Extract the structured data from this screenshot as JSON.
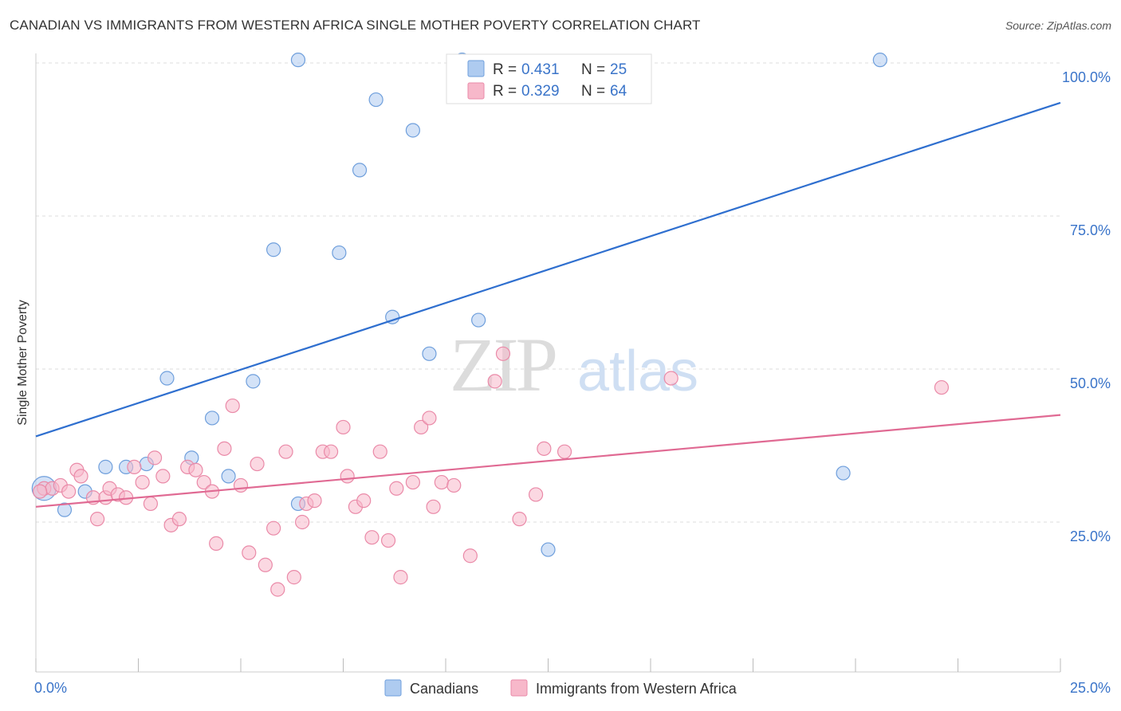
{
  "header": {
    "title": "CANADIAN VS IMMIGRANTS FROM WESTERN AFRICA SINGLE MOTHER POVERTY CORRELATION CHART",
    "source": "Source: ZipAtlas.com"
  },
  "watermark": {
    "zip": "ZIP",
    "atlas": "atlas"
  },
  "colors": {
    "blue_fill": "#aecbf0",
    "blue_stroke": "#6f9fdc",
    "blue_line": "#2f6fcf",
    "pink_fill": "#f7b8ca",
    "pink_stroke": "#ea8aa8",
    "pink_line": "#e06a93",
    "axis_label": "#3a74c9",
    "grid": "#dddddd"
  },
  "legend": {
    "rows": [
      {
        "r_label": "R =",
        "r_value": "0.431",
        "n_label": "N =",
        "n_value": "25"
      },
      {
        "r_label": "R =",
        "r_value": "0.329",
        "n_label": "N =",
        "n_value": "64"
      }
    ]
  },
  "chart_data": {
    "type": "scatter",
    "title": "CANADIAN VS IMMIGRANTS FROM WESTERN AFRICA SINGLE MOTHER POVERTY CORRELATION CHART",
    "xlabel": "",
    "ylabel": "Single Mother Poverty",
    "xlim": [
      0,
      25
    ],
    "ylim": [
      0,
      105
    ],
    "x_ticks": [
      0,
      2.5,
      5,
      7.5,
      10,
      12.5,
      15,
      17.5,
      20,
      22.5,
      25
    ],
    "x_tick_labels": {
      "0": "0.0%",
      "25": "25.0%"
    },
    "y_ticks": [
      25,
      50,
      75,
      100
    ],
    "y_tick_labels": [
      "25.0%",
      "50.0%",
      "75.0%",
      "100.0%"
    ],
    "grid": "horizontal dashed",
    "legend_position": "bottom-center",
    "series": [
      {
        "name": "Canadians",
        "color": "blue",
        "r": 0.431,
        "n": 25,
        "trend": {
          "x": [
            0,
            25
          ],
          "y": [
            39.0,
            93.5
          ]
        },
        "points": [
          [
            0.2,
            30.5
          ],
          [
            0.7,
            27.0
          ],
          [
            1.2,
            30.0
          ],
          [
            1.7,
            34.0
          ],
          [
            2.2,
            34.0
          ],
          [
            2.7,
            34.5
          ],
          [
            3.2,
            48.5
          ],
          [
            3.8,
            35.5
          ],
          [
            4.3,
            42.0
          ],
          [
            4.7,
            32.5
          ],
          [
            5.3,
            48.0
          ],
          [
            5.8,
            69.5
          ],
          [
            6.4,
            100.5
          ],
          [
            6.4,
            28.0
          ],
          [
            7.4,
            69.0
          ],
          [
            7.9,
            82.5
          ],
          [
            8.3,
            94.0
          ],
          [
            8.7,
            58.5
          ],
          [
            9.2,
            89.0
          ],
          [
            9.6,
            52.5
          ],
          [
            10.4,
            100.5
          ],
          [
            10.8,
            58.0
          ],
          [
            12.5,
            20.5
          ],
          [
            19.7,
            33.0
          ],
          [
            20.6,
            100.5
          ]
        ]
      },
      {
        "name": "Immigrants from Western Africa",
        "color": "pink",
        "r": 0.329,
        "n": 64,
        "trend": {
          "x": [
            0,
            25
          ],
          "y": [
            27.5,
            42.5
          ]
        },
        "points": [
          [
            0.2,
            30.5
          ],
          [
            0.4,
            30.5
          ],
          [
            0.6,
            31.0
          ],
          [
            0.8,
            30.0
          ],
          [
            1.0,
            33.5
          ],
          [
            1.1,
            32.5
          ],
          [
            1.4,
            29.0
          ],
          [
            1.5,
            25.5
          ],
          [
            1.7,
            29.0
          ],
          [
            1.8,
            30.5
          ],
          [
            2.0,
            29.5
          ],
          [
            2.2,
            29.0
          ],
          [
            2.4,
            34.0
          ],
          [
            2.6,
            31.5
          ],
          [
            2.8,
            28.0
          ],
          [
            2.9,
            35.5
          ],
          [
            3.1,
            32.5
          ],
          [
            3.3,
            24.5
          ],
          [
            3.5,
            25.5
          ],
          [
            3.7,
            34.0
          ],
          [
            3.9,
            33.5
          ],
          [
            4.1,
            31.5
          ],
          [
            4.3,
            30.0
          ],
          [
            4.4,
            21.5
          ],
          [
            4.6,
            37.0
          ],
          [
            4.8,
            44.0
          ],
          [
            5.0,
            31.0
          ],
          [
            5.2,
            20.0
          ],
          [
            5.4,
            34.5
          ],
          [
            5.6,
            18.0
          ],
          [
            5.8,
            24.0
          ],
          [
            5.9,
            14.0
          ],
          [
            6.1,
            36.5
          ],
          [
            6.3,
            16.0
          ],
          [
            6.5,
            25.0
          ],
          [
            6.6,
            28.0
          ],
          [
            6.8,
            28.5
          ],
          [
            7.0,
            36.5
          ],
          [
            7.2,
            36.5
          ],
          [
            7.5,
            40.5
          ],
          [
            7.6,
            32.5
          ],
          [
            7.8,
            27.5
          ],
          [
            8.0,
            28.5
          ],
          [
            8.2,
            22.5
          ],
          [
            8.4,
            36.5
          ],
          [
            8.6,
            22.0
          ],
          [
            8.8,
            30.5
          ],
          [
            8.9,
            16.0
          ],
          [
            9.2,
            31.5
          ],
          [
            9.4,
            40.5
          ],
          [
            9.6,
            42.0
          ],
          [
            9.7,
            27.5
          ],
          [
            9.9,
            31.5
          ],
          [
            10.2,
            31.0
          ],
          [
            10.6,
            19.5
          ],
          [
            11.2,
            48.0
          ],
          [
            11.4,
            52.5
          ],
          [
            11.8,
            25.5
          ],
          [
            12.2,
            29.5
          ],
          [
            12.4,
            37.0
          ],
          [
            12.9,
            36.5
          ],
          [
            15.5,
            48.5
          ],
          [
            22.1,
            47.0
          ],
          [
            0.1,
            30.0
          ]
        ]
      }
    ]
  },
  "bottom_legend": {
    "items": [
      {
        "label": "Canadians"
      },
      {
        "label": "Immigrants from Western Africa"
      }
    ]
  }
}
